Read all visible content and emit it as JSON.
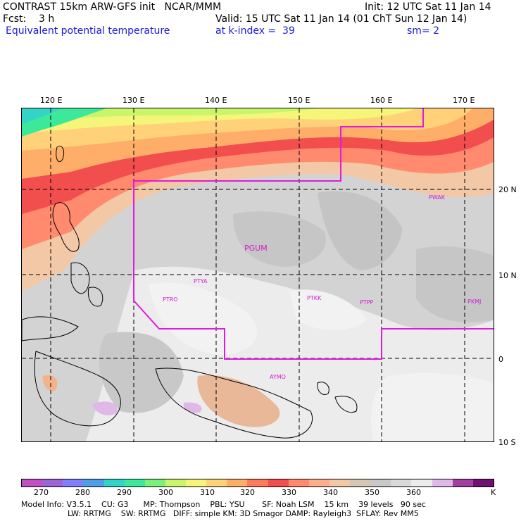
{
  "header": {
    "line1_left": "CONTRAST 15km ARW-GFS init   NCAR/MMM",
    "line1_right": "Init: 12 UTC Sat 11 Jan 14",
    "line2_left": "Fcst:    3 h",
    "line2_right": "Valid: 15 UTC Sat 11 Jan 14 (01 ChT Sun 12 Jan 14)",
    "line3_left": "Equivalent potential temperature",
    "line3_mid": "at k-index =  39",
    "line3_right": "sm= 2"
  },
  "longitude_labels": [
    "120 E",
    "130 E",
    "140 E",
    "150 E",
    "160 E",
    "170 E"
  ],
  "latitude_labels": [
    "20 N",
    "10 N",
    "0",
    "10 S"
  ],
  "stations": [
    "PWAK",
    "PGUM",
    "PTYA",
    "PTRO",
    "PTKK",
    "PTPP",
    "PKMJ",
    "AYMO"
  ],
  "colorbar": {
    "labels": [
      "270",
      "280",
      "290",
      "300",
      "310",
      "320",
      "330",
      "340",
      "350",
      "360",
      "K"
    ],
    "colors": [
      "#c34fc3",
      "#9b65d6",
      "#8080ff",
      "#4f9fe8",
      "#34d3c8",
      "#3ee89a",
      "#7bf07b",
      "#c8f56a",
      "#f5f57a",
      "#ffd27a",
      "#ffae6a",
      "#ff7a5a",
      "#f24e4e",
      "#ff8a6e",
      "#ffae8a",
      "#f2c8a6",
      "#d6c6b4",
      "#c8c8c8",
      "#d9d9d9",
      "#ececec",
      "#e0b8e8",
      "#a040a0",
      "#701070"
    ]
  },
  "footer": {
    "line1": "Model Info: V3.5.1    CU: G3      MP: Thompson    PBL: YSU       SF: Noah LSM    15 km    39 levels   90 sec",
    "line2": "LW: RRTMG    SW: RRTMG   DIFF: simple KM: 3D Smagor DAMP: Rayleigh3  SFLAY: Rev MM5"
  }
}
